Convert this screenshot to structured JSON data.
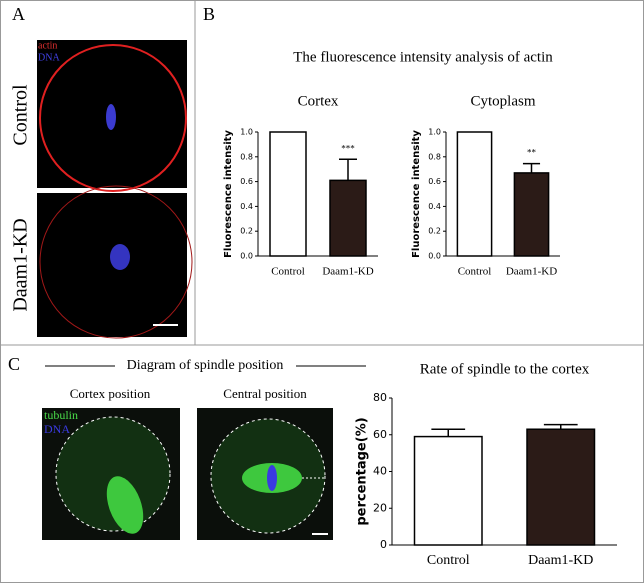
{
  "panel_labels": [
    "A",
    "B",
    "C"
  ],
  "panel_a": {
    "stain_labels": [
      "actin",
      "DNA"
    ],
    "row_labels": [
      "Control",
      "Daam1-KD"
    ]
  },
  "panel_b": {
    "title": "The fluorescence intensity analysis of actin"
  },
  "panel_c": {
    "title": "Diagram of spindle position",
    "image_labels": [
      "Cortex position",
      "Central position"
    ],
    "stain_labels": [
      "tubulin",
      "DNA"
    ]
  },
  "chart_data": [
    {
      "type": "bar",
      "title": "Cortex",
      "ylabel": "Fluorescence intensity",
      "categories": [
        "Control",
        "Daam1-KD"
      ],
      "values": [
        1.0,
        0.61
      ],
      "errors": [
        null,
        0.17
      ],
      "colors": [
        "#ffffff",
        "#2b1b17"
      ],
      "significance": [
        null,
        "***"
      ],
      "ylim": [
        0,
        1.0
      ],
      "yticks": [
        {
          "value": 0,
          "label": "0.0"
        },
        0.2,
        0.4,
        0.6,
        0.8,
        {
          "value": 1.0,
          "label": "1.0"
        }
      ]
    },
    {
      "type": "bar",
      "title": "Cytoplasm",
      "ylabel": "Fluorescence intensity",
      "categories": [
        "Control",
        "Daam1-KD"
      ],
      "values": [
        1.0,
        0.67
      ],
      "errors": [
        null,
        0.075
      ],
      "colors": [
        "#ffffff",
        "#2b1b17"
      ],
      "significance": [
        null,
        "**"
      ],
      "ylim": [
        0,
        1.0
      ],
      "yticks": [
        {
          "value": 0,
          "label": "0.0"
        },
        0.2,
        0.4,
        0.6,
        0.8,
        {
          "value": 1.0,
          "label": "1.0"
        }
      ]
    },
    {
      "type": "bar",
      "title": "Rate of spindle to the cortex",
      "ylabel": "percentage(%)",
      "categories": [
        "Control",
        "Daam1-KD"
      ],
      "values": [
        59,
        63
      ],
      "errors": [
        4,
        2.5
      ],
      "colors": [
        "#ffffff",
        "#2b1b17"
      ],
      "significance": [
        null,
        null
      ],
      "ylim": [
        0,
        80
      ],
      "yticks": [
        0,
        20,
        40,
        60,
        80
      ]
    }
  ]
}
